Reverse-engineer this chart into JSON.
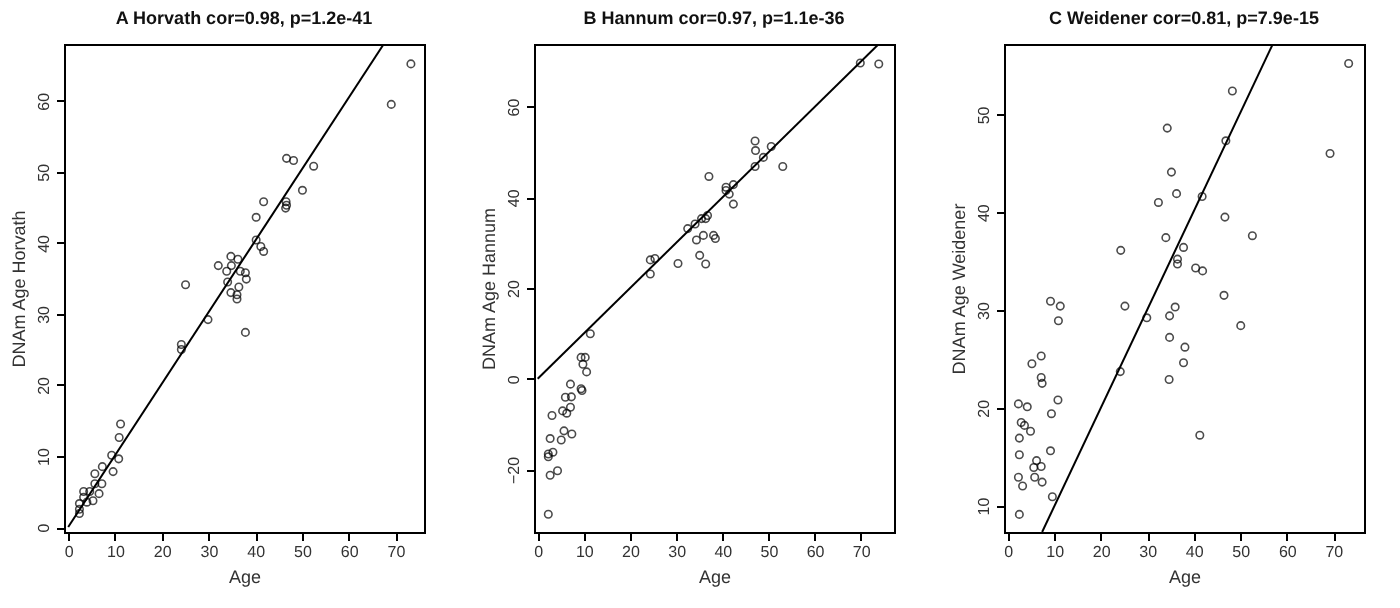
{
  "chart_data": [
    {
      "type": "scatter",
      "title": "A Horvath cor=0.98, p=1.2e-41",
      "xlabel": "Age",
      "ylabel": "DNAm Age Horvath",
      "xlim": [
        -0.9,
        76.1
      ],
      "ylim": [
        -0.7,
        68
      ],
      "xticks": [
        0,
        10,
        20,
        30,
        40,
        50,
        60,
        70
      ],
      "yticks": [
        0,
        10,
        20,
        30,
        40,
        50,
        60
      ],
      "grid": false,
      "series": [
        {
          "type": "scatter",
          "marker": "circle",
          "color": "#000000",
          "x": [
            73.3,
            69.1,
            46.7,
            48.2,
            52.5,
            50.1,
            46.6,
            46.7,
            46.5,
            41.8,
            40.2,
            40.2,
            41.2,
            41.8,
            32.1,
            33.9,
            34.8,
            34.9,
            36.3,
            36.8,
            37.9,
            38.1,
            34.1,
            36.5,
            34.8,
            36.1,
            36.1,
            37.9,
            25.1,
            29.9,
            24.2,
            24.2,
            11.2,
            10.9,
            10.8,
            9.3,
            9.6,
            7.3,
            7.2,
            5.7,
            5.7,
            3.3,
            4.6,
            5.3,
            4.0,
            2.4,
            2.4,
            2.4,
            3.3,
            6.6
          ],
          "values": [
            65.2,
            59.5,
            51.9,
            51.6,
            50.8,
            47.4,
            45.8,
            45.3,
            44.9,
            45.8,
            43.6,
            40.4,
            39.5,
            38.8,
            36.8,
            36.0,
            38.1,
            36.8,
            37.7,
            36.0,
            35.8,
            34.9,
            34.5,
            33.8,
            33.0,
            32.7,
            32.1,
            27.4,
            34.1,
            29.2,
            25.7,
            25.0,
            14.5,
            12.6,
            9.6,
            10.1,
            7.8,
            8.5,
            6.1,
            7.5,
            6.1,
            5.0,
            5.0,
            3.7,
            3.5,
            3.3,
            2.5,
            1.9,
            4.2,
            4.7
          ]
        },
        {
          "type": "line",
          "color": "#000000",
          "line_style": "solid",
          "x": [
            0,
            67.5
          ],
          "values": [
            0,
            68
          ]
        }
      ]
    },
    {
      "type": "scatter",
      "title": "B Hannum cor=0.97, p=1.1e-36",
      "xlabel": "Age",
      "ylabel": "DNAm Age Hannum",
      "xlim": [
        -0.8,
        77.2
      ],
      "ylim": [
        -33.8,
        73.8
      ],
      "xticks": [
        0,
        10,
        20,
        30,
        40,
        50,
        60,
        70
      ],
      "yticks": [
        -20,
        0,
        20,
        40,
        60
      ],
      "grid": false,
      "series": [
        {
          "type": "scatter",
          "marker": "circle",
          "color": "#000000",
          "x": [
            73.9,
            69.9,
            47.1,
            47.2,
            50.6,
            48.9,
            47.1,
            53.1,
            37.1,
            40.8,
            40.8,
            41.5,
            42.4,
            42.4,
            36.8,
            36.4,
            35.5,
            34.1,
            32.5,
            34.4,
            35.9,
            38.1,
            38.5,
            35.1,
            36.4,
            30.4,
            24.4,
            25.4,
            24.4,
            11.4,
            9.4,
            10.3,
            9.8,
            10.6,
            7.1,
            9.4,
            9.6,
            6.0,
            7.3,
            7.1,
            5.4,
            6.3,
            3.1,
            5.7,
            7.4,
            5.1,
            2.7,
            2.3,
            3.3,
            2.3,
            4.3,
            2.7,
            2.3
          ],
          "values": [
            69.4,
            69.6,
            52.4,
            50.3,
            51.2,
            48.8,
            46.8,
            46.8,
            44.6,
            42.2,
            41.5,
            40.7,
            42.8,
            38.5,
            36.0,
            35.3,
            35.3,
            34.1,
            33.1,
            30.6,
            31.6,
            31.6,
            30.9,
            27.2,
            25.3,
            25.4,
            26.2,
            26.5,
            23.1,
            9.9,
            4.7,
            4.7,
            3.2,
            1.5,
            -1.2,
            -2.2,
            -2.6,
            -4.1,
            -4.0,
            -6.3,
            -7.1,
            -7.6,
            -8.1,
            -11.5,
            -12.2,
            -13.5,
            -13.2,
            -16.6,
            -16.2,
            -17.2,
            -20.3,
            -21.3,
            -29.9
          ]
        },
        {
          "type": "line",
          "color": "#000000",
          "line_style": "solid",
          "x": [
            0,
            73.9
          ],
          "values": [
            0,
            73.8
          ]
        }
      ]
    },
    {
      "type": "scatter",
      "title": "C Weidener cor=0.81, p=7.9e-15",
      "xlabel": "Age",
      "ylabel": "DNAm Age Weidener",
      "xlim": [
        -0.8,
        76.6
      ],
      "ylim": [
        7.3,
        57.2
      ],
      "xticks": [
        0,
        10,
        20,
        30,
        40,
        50,
        60,
        70
      ],
      "yticks": [
        10,
        20,
        30,
        40,
        50
      ],
      "grid": false,
      "series": [
        {
          "type": "scatter",
          "marker": "circle",
          "color": "#000000",
          "x": [
            73.3,
            69.3,
            48.3,
            46.9,
            34.3,
            35.2,
            36.3,
            32.4,
            41.8,
            46.7,
            52.6,
            34.0,
            37.8,
            36.5,
            36.5,
            40.4,
            41.9,
            24.3,
            25.2,
            29.9,
            36.0,
            34.8,
            34.8,
            38.1,
            37.8,
            34.7,
            46.5,
            50.1,
            41.3,
            24.2,
            9.2,
            11.3,
            10.9,
            7.2,
            5.2,
            7.2,
            7.4,
            10.8,
            9.4,
            2.3,
            4.2,
            2.9,
            3.6,
            4.9,
            2.5,
            2.5,
            9.2,
            6.2,
            7.2,
            5.6,
            5.8,
            7.4,
            2.3,
            3.2,
            9.6,
            2.5
          ],
          "values": [
            55.2,
            46.0,
            52.4,
            47.3,
            48.6,
            44.1,
            41.9,
            41.0,
            41.6,
            39.5,
            37.6,
            37.4,
            36.4,
            35.2,
            34.7,
            34.3,
            34.0,
            36.1,
            30.4,
            29.2,
            30.3,
            29.4,
            27.2,
            26.2,
            24.6,
            22.9,
            31.5,
            28.4,
            17.2,
            23.7,
            30.9,
            30.4,
            28.9,
            25.3,
            24.5,
            23.1,
            22.5,
            20.8,
            19.4,
            20.4,
            20.1,
            18.5,
            18.2,
            17.6,
            16.9,
            15.2,
            15.6,
            14.6,
            14.0,
            13.9,
            12.9,
            12.4,
            12.9,
            12.0,
            10.9,
            9.1
          ]
        },
        {
          "type": "line",
          "color": "#000000",
          "line_style": "solid",
          "x": [
            7.4,
            57.0
          ],
          "values": [
            7.3,
            57.2
          ]
        }
      ]
    }
  ]
}
